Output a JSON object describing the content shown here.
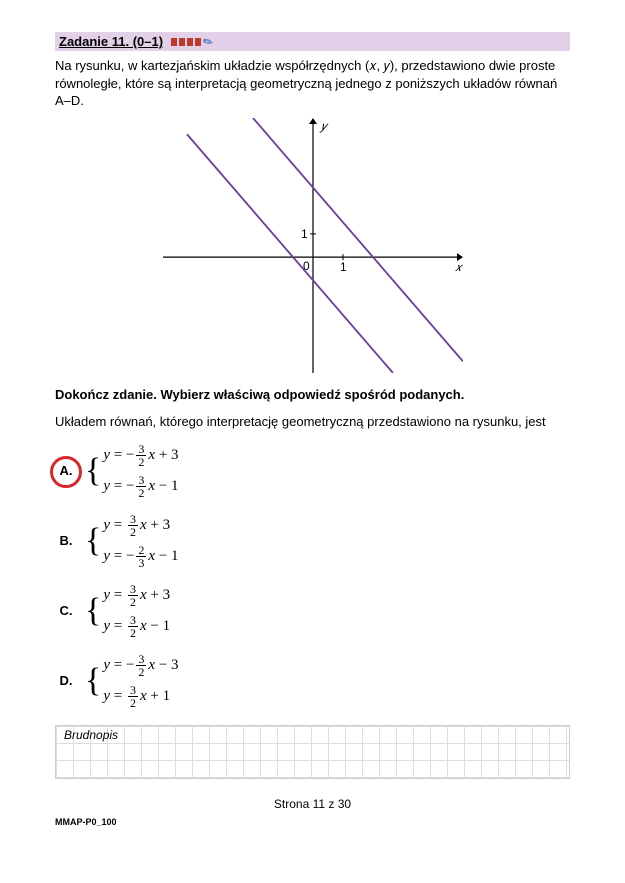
{
  "header": {
    "title": "Zadanie 11. (0–1)"
  },
  "intro": "Na rysunku, w kartezjańskim układzie współrzędnych  (𝑥, 𝑦), przedstawiono dwie proste równoległe, które są interpretacją geometryczną jednego z poniższych układów równań A–D.",
  "chart": {
    "type": "line",
    "axis_labels": {
      "x": "𝑥",
      "y": "𝑦"
    },
    "xlim": [
      -5,
      5
    ],
    "ylim": [
      -5,
      6
    ],
    "tick_x": {
      "pos": 1,
      "label": "1"
    },
    "tick_y": {
      "pos": 1,
      "label": "1"
    },
    "origin_label": "0",
    "line_color": "#6a3d9a",
    "lines": [
      {
        "x1": -2.0,
        "y1": 6.0,
        "x2": 5.0,
        "y2": -4.5
      },
      {
        "x1": -4.2,
        "y1": 5.3,
        "x2": 2.666,
        "y2": -5.0
      }
    ],
    "axis_color": "#000000",
    "background_color": "#ffffff"
  },
  "bold_instruction": "Dokończ zdanie. Wybierz właściwą odpowiedź spośród podanych.",
  "question_sub": "Układem równań, którego interpretację geometryczną przedstawiono na rysunku, jest",
  "options": [
    {
      "label": "A.",
      "selected": true,
      "eq1": {
        "lhs": "y",
        "sign1": "−",
        "frac_num": "3",
        "frac_den": "2",
        "var": "x",
        "const": "+ 3"
      },
      "eq2": {
        "lhs": "y",
        "sign1": "−",
        "frac_num": "3",
        "frac_den": "2",
        "var": "x",
        "const": "− 1"
      }
    },
    {
      "label": "B.",
      "selected": false,
      "eq1": {
        "lhs": "y",
        "sign1": "",
        "frac_num": "3",
        "frac_den": "2",
        "var": "x",
        "const": "+ 3"
      },
      "eq2": {
        "lhs": "y",
        "sign1": "−",
        "frac_num": "2",
        "frac_den": "3",
        "var": "x",
        "const": "− 1"
      }
    },
    {
      "label": "C.",
      "selected": false,
      "eq1": {
        "lhs": "y",
        "sign1": "",
        "frac_num": "3",
        "frac_den": "2",
        "var": "x",
        "const": "+ 3"
      },
      "eq2": {
        "lhs": "y",
        "sign1": "",
        "frac_num": "3",
        "frac_den": "2",
        "var": "x",
        "const": "− 1"
      }
    },
    {
      "label": "D.",
      "selected": false,
      "eq1": {
        "lhs": "y",
        "sign1": "−",
        "frac_num": "3",
        "frac_den": "2",
        "var": "x",
        "const": "− 3"
      },
      "eq2": {
        "lhs": "y",
        "sign1": "",
        "frac_num": "3",
        "frac_den": "2",
        "var": "x",
        "const": "+ 1"
      }
    }
  ],
  "scratch_label": "Brudnopis",
  "footer_page": "Strona 11 z 30",
  "footer_code": "MMAP-P0_100"
}
